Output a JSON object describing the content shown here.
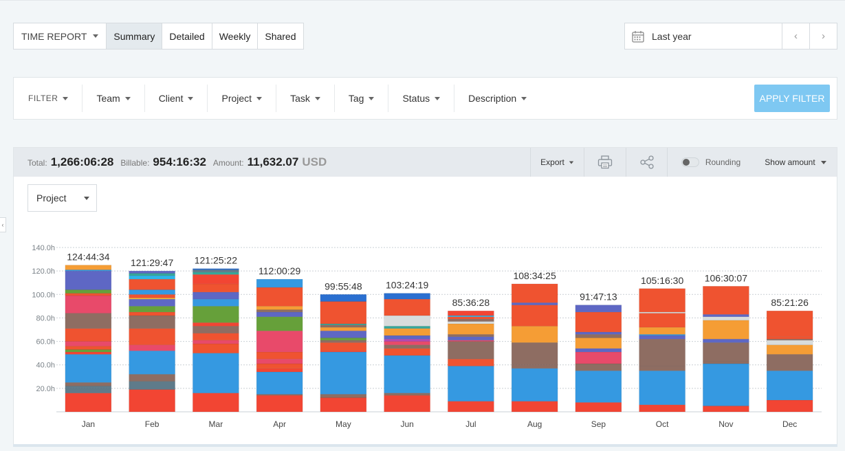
{
  "report": {
    "menu_label": "TIME REPORT",
    "tabs": [
      "Summary",
      "Detailed",
      "Weekly",
      "Shared"
    ],
    "active_tab": "Summary"
  },
  "date": {
    "range_label": "Last year",
    "prev": "‹",
    "next": "›"
  },
  "filters": {
    "label": "FILTER",
    "items": [
      "Team",
      "Client",
      "Project",
      "Task",
      "Tag",
      "Status",
      "Description"
    ],
    "apply_label": "APPLY FILTER"
  },
  "totals": {
    "total_label": "Total:",
    "total_value": "1,266:06:28",
    "billable_label": "Billable:",
    "billable_value": "954:16:32",
    "amount_label": "Amount:",
    "amount_value": "11,632.07",
    "currency": "USD"
  },
  "toolbar": {
    "export_label": "Export",
    "rounding_label": "Rounding",
    "rounding_on": false,
    "show_amount_label": "Show amount"
  },
  "group_by": "Project",
  "colors": {
    "apply_button": "#7ec8f2",
    "palette": {
      "r": "#f24533",
      "b": "#3599e1",
      "br": "#8e6d62",
      "o": "#ef5330",
      "p": "#5e67c4",
      "pk": "#e84a6a",
      "g": "#66a03a",
      "y": "#f59d35",
      "gr": "#5f7b8a",
      "lg": "#d8dcdc",
      "db": "#2a6fd0",
      "t": "#36a79a",
      "lb": "#2fb5e9",
      "yl": "#f5c23a",
      "m": "#b24bb3"
    }
  },
  "chart_data": {
    "type": "bar",
    "stacked": true,
    "ylim": [
      0,
      140
    ],
    "yticks": [
      "20.0h",
      "40.0h",
      "60.0h",
      "80.0h",
      "100.0h",
      "120.0h",
      "140.0h"
    ],
    "grid": true,
    "categories": [
      "Jan",
      "Feb",
      "Mar",
      "Apr",
      "May",
      "Jun",
      "Jul",
      "Aug",
      "Sep",
      "Oct",
      "Nov",
      "Dec"
    ],
    "totals": [
      "124:44:34",
      "121:29:47",
      "121:25:22",
      "112:00:29",
      "99:55:48",
      "103:24:19",
      "85:36:28",
      "108:34:25",
      "91:47:13",
      "105:16:30",
      "106:30:07",
      "85:21:26"
    ],
    "stacks": [
      [
        [
          "r",
          16
        ],
        [
          "gr",
          4
        ],
        [
          "gr",
          2
        ],
        [
          "br",
          3
        ],
        [
          "b",
          24
        ],
        [
          "r",
          2
        ],
        [
          "g",
          2
        ],
        [
          "o",
          3
        ],
        [
          "pk",
          4
        ],
        [
          "o",
          11
        ],
        [
          "br",
          13
        ],
        [
          "pk",
          15
        ],
        [
          "o",
          2
        ],
        [
          "g",
          3
        ],
        [
          "p",
          16
        ],
        [
          "b",
          1
        ],
        [
          "y",
          4
        ]
      ],
      [
        [
          "r",
          19
        ],
        [
          "gr",
          7
        ],
        [
          "br",
          6
        ],
        [
          "b",
          20
        ],
        [
          "pk",
          5
        ],
        [
          "o",
          14
        ],
        [
          "br",
          11
        ],
        [
          "o",
          3
        ],
        [
          "g",
          5
        ],
        [
          "p",
          6
        ],
        [
          "yl",
          1
        ],
        [
          "o",
          3
        ],
        [
          "b",
          4
        ],
        [
          "o",
          9
        ],
        [
          "lb",
          3
        ],
        [
          "t",
          2
        ],
        [
          "p",
          2
        ]
      ],
      [
        [
          "r",
          16
        ],
        [
          "b",
          34
        ],
        [
          "o",
          8
        ],
        [
          "pk",
          3
        ],
        [
          "o",
          6
        ],
        [
          "br",
          6
        ],
        [
          "r",
          3
        ],
        [
          "g",
          14
        ],
        [
          "b",
          6
        ],
        [
          "p",
          6
        ],
        [
          "o",
          7
        ],
        [
          "r",
          8
        ],
        [
          "t",
          2
        ],
        [
          "gr",
          2
        ],
        [
          "db",
          1
        ]
      ],
      [
        [
          "r",
          14
        ],
        [
          "br",
          1
        ],
        [
          "b",
          19
        ],
        [
          "r",
          3
        ],
        [
          "o",
          4
        ],
        [
          "pk",
          4
        ],
        [
          "o",
          6
        ],
        [
          "pk",
          18
        ],
        [
          "g",
          12
        ],
        [
          "p",
          4
        ],
        [
          "br",
          2
        ],
        [
          "y",
          3
        ],
        [
          "o",
          16
        ],
        [
          "b",
          7
        ]
      ],
      [
        [
          "r",
          12
        ],
        [
          "br",
          3
        ],
        [
          "b",
          36
        ],
        [
          "r",
          1
        ],
        [
          "o",
          7
        ],
        [
          "br",
          2
        ],
        [
          "g",
          2
        ],
        [
          "p",
          6
        ],
        [
          "y",
          3
        ],
        [
          "br",
          2
        ],
        [
          "t",
          1
        ],
        [
          "o",
          19
        ],
        [
          "db",
          6
        ]
      ],
      [
        [
          "r",
          14
        ],
        [
          "br",
          2
        ],
        [
          "b",
          32
        ],
        [
          "o",
          6
        ],
        [
          "br",
          3
        ],
        [
          "pk",
          3
        ],
        [
          "m",
          2
        ],
        [
          "p",
          3
        ],
        [
          "y",
          6
        ],
        [
          "t",
          2
        ],
        [
          "lg",
          9
        ],
        [
          "o",
          14
        ],
        [
          "db",
          5
        ]
      ],
      [
        [
          "r",
          9
        ],
        [
          "b",
          30
        ],
        [
          "o",
          6
        ],
        [
          "br",
          15
        ],
        [
          "pk",
          1
        ],
        [
          "p",
          3
        ],
        [
          "br",
          2
        ],
        [
          "y",
          9
        ],
        [
          "lg",
          2
        ],
        [
          "br",
          2
        ],
        [
          "o",
          2
        ],
        [
          "lb",
          1
        ],
        [
          "r",
          4
        ]
      ],
      [
        [
          "r",
          9
        ],
        [
          "b",
          28
        ],
        [
          "br",
          3
        ],
        [
          "br",
          19
        ],
        [
          "y",
          14
        ],
        [
          "o",
          18
        ],
        [
          "p",
          2
        ],
        [
          "o",
          16
        ]
      ],
      [
        [
          "r",
          8
        ],
        [
          "b",
          27
        ],
        [
          "br",
          6
        ],
        [
          "pk",
          10
        ],
        [
          "p",
          3
        ],
        [
          "y",
          9
        ],
        [
          "br",
          3
        ],
        [
          "p",
          2
        ],
        [
          "o",
          17
        ],
        [
          "p",
          6
        ]
      ],
      [
        [
          "r",
          6
        ],
        [
          "b",
          29
        ],
        [
          "br",
          4
        ],
        [
          "br",
          23
        ],
        [
          "p",
          3
        ],
        [
          "b",
          1
        ],
        [
          "y",
          6
        ],
        [
          "o",
          12
        ],
        [
          "lg",
          1
        ],
        [
          "o",
          20
        ]
      ],
      [
        [
          "r",
          5
        ],
        [
          "b",
          36
        ],
        [
          "br",
          2
        ],
        [
          "br",
          16
        ],
        [
          "p",
          3
        ],
        [
          "y",
          16
        ],
        [
          "lg",
          3
        ],
        [
          "p",
          2
        ],
        [
          "o",
          24
        ]
      ],
      [
        [
          "r",
          10
        ],
        [
          "b",
          25
        ],
        [
          "br",
          14
        ],
        [
          "y",
          8
        ],
        [
          "lg",
          4
        ],
        [
          "br",
          1
        ],
        [
          "o",
          2
        ],
        [
          "o",
          22
        ]
      ]
    ]
  }
}
